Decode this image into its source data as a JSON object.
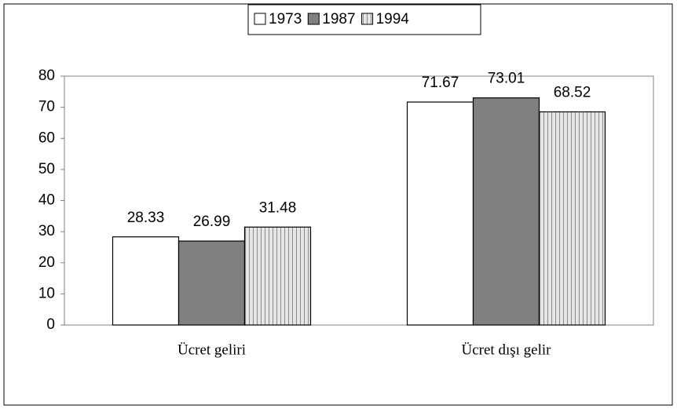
{
  "chart_data": {
    "type": "bar",
    "categories": [
      "Ücret geliri",
      "Ücret dışı gelir"
    ],
    "series": [
      {
        "name": "1973",
        "color": "#ffffff",
        "values": [
          28.33,
          71.67
        ]
      },
      {
        "name": "1987",
        "color": "#808080",
        "values": [
          26.99,
          73.01
        ]
      },
      {
        "name": "1994",
        "color": "hatch",
        "values": [
          31.48,
          68.52
        ]
      }
    ],
    "ylim": [
      0,
      80
    ],
    "yticks": [
      0,
      10,
      20,
      30,
      40,
      50,
      60,
      70,
      80
    ],
    "legend": "top",
    "grid": false
  }
}
